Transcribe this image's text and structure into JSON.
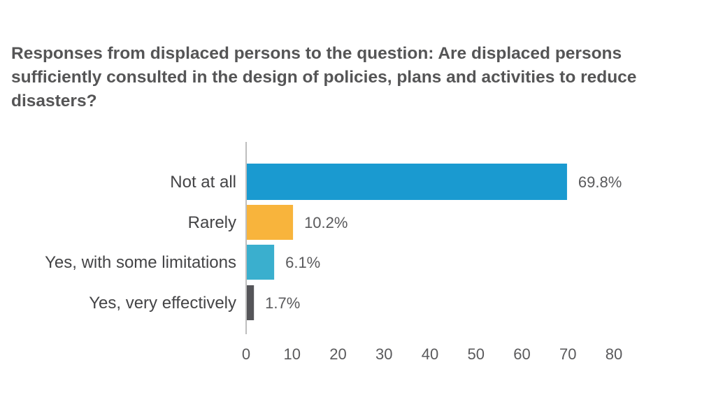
{
  "chart_data": {
    "type": "bar",
    "orientation": "horizontal",
    "title": "Responses from displaced persons to the question: Are displaced persons sufficiently consulted in the design of policies, plans and activities to reduce disasters?",
    "categories": [
      "Not at all",
      "Rarely",
      "Yes, with some limitations",
      "Yes, very effectively"
    ],
    "values": [
      69.8,
      10.2,
      6.1,
      1.7
    ],
    "value_labels": [
      "69.8%",
      "10.2%",
      "6.1%",
      "1.7%"
    ],
    "colors": [
      "#1a9ad0",
      "#f8b43c",
      "#3aafce",
      "#555559"
    ],
    "xlim": [
      0,
      80
    ],
    "xticks": [
      "0",
      "10",
      "20",
      "30",
      "40",
      "50",
      "60",
      "70",
      "80"
    ],
    "xlabel": "",
    "ylabel": "",
    "grid": false,
    "legend": "none"
  }
}
